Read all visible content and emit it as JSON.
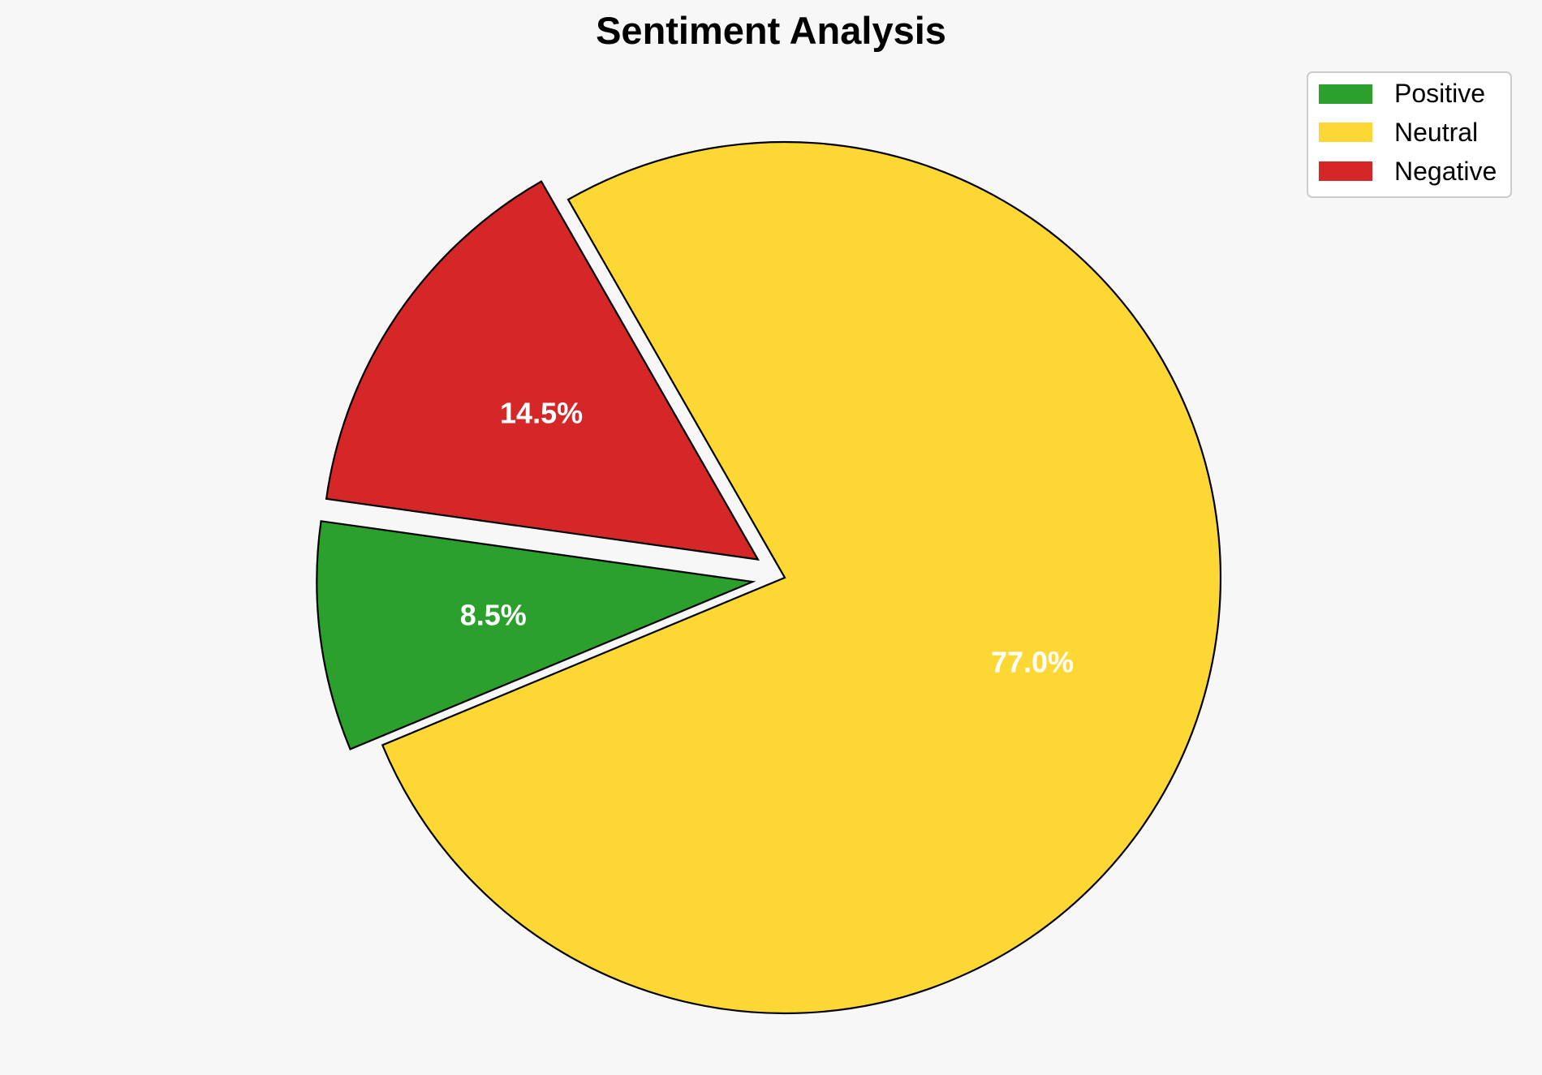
{
  "chart_data": {
    "type": "pie",
    "title": "Sentiment Analysis",
    "slices": [
      {
        "label": "Positive",
        "value": 8.5,
        "color": "#2ca02c",
        "exploded": true
      },
      {
        "label": "Neutral",
        "value": 77.0,
        "color": "#fdd835",
        "exploded": false
      },
      {
        "label": "Negative",
        "value": 14.5,
        "color": "#d62728",
        "exploded": true
      }
    ],
    "data_labels": [
      "8.5%",
      "77.0%",
      "14.5%"
    ],
    "legend": {
      "placement": "top-right",
      "entries": [
        "Positive",
        "Neutral",
        "Negative"
      ]
    }
  }
}
